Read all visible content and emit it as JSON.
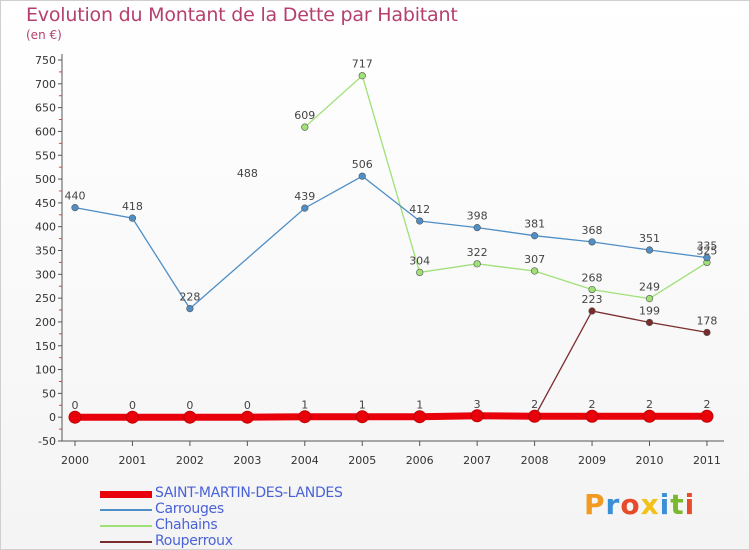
{
  "header": {
    "title": "Evolution du Montant de la Dette par Habitant",
    "unit": "(en €)"
  },
  "logo": {
    "text": "Proxiti",
    "colors": [
      "#f29a21",
      "#3a8fd6",
      "#e84b2c",
      "#f2c21b",
      "#3a8fd6",
      "#7ab92e",
      "#e84b2c"
    ]
  },
  "chart_data": {
    "type": "line",
    "x": [
      "2000",
      "2001",
      "2002",
      "2003",
      "2004",
      "2005",
      "2006",
      "2007",
      "2008",
      "2009",
      "2010",
      "2011"
    ],
    "ylim": [
      -50,
      750
    ],
    "yticks": [
      -50,
      0,
      50,
      100,
      150,
      200,
      250,
      300,
      350,
      400,
      450,
      500,
      550,
      600,
      650,
      700,
      750
    ],
    "grid": false,
    "legend_position": "bottom-left",
    "series": [
      {
        "name": "SAINT-MARTIN-DES-LANDES",
        "color": "#e8000b",
        "values": [
          0,
          0,
          0,
          0,
          1,
          1,
          1,
          3,
          2,
          2,
          2,
          2
        ]
      },
      {
        "name": "Carrouges",
        "color": "#4f8ec6",
        "values": [
          440,
          418,
          228,
          null,
          439,
          506,
          412,
          398,
          381,
          368,
          351,
          335
        ]
      },
      {
        "name": "Chahains",
        "color": "#9fe077",
        "values": [
          null,
          null,
          null,
          null,
          609,
          717,
          304,
          322,
          307,
          268,
          249,
          325
        ]
      },
      {
        "name": "Rouperroux",
        "color": "#7a2c2c",
        "values": [
          0,
          0,
          0,
          0,
          1,
          1,
          1,
          1,
          1,
          223,
          199,
          178
        ]
      }
    ],
    "point_labels": [
      {
        "x": "2000",
        "text": "440",
        "value": 440
      },
      {
        "x": "2001",
        "text": "418",
        "value": 418
      },
      {
        "x": "2002",
        "text": "228",
        "value": 228
      },
      {
        "x": "2003",
        "text": "488",
        "value": 488
      },
      {
        "x": "2004",
        "text": "439",
        "value": 439
      },
      {
        "x": "2005",
        "text": "506",
        "value": 506
      },
      {
        "x": "2006",
        "text": "412",
        "value": 412
      },
      {
        "x": "2007",
        "text": "398",
        "value": 398
      },
      {
        "x": "2008",
        "text": "381",
        "value": 381
      },
      {
        "x": "2009",
        "text": "368",
        "value": 368
      },
      {
        "x": "2010",
        "text": "351",
        "value": 351
      },
      {
        "x": "2011",
        "text": "335",
        "value": 335
      },
      {
        "x": "2004",
        "text": "609",
        "value": 609
      },
      {
        "x": "2005",
        "text": "717",
        "value": 717
      },
      {
        "x": "2006",
        "text": "304",
        "value": 304
      },
      {
        "x": "2007",
        "text": "322",
        "value": 322
      },
      {
        "x": "2008",
        "text": "307",
        "value": 307
      },
      {
        "x": "2009",
        "text": "268",
        "value": 268
      },
      {
        "x": "2010",
        "text": "249",
        "value": 249
      },
      {
        "x": "2011",
        "text": "325",
        "value": 325
      },
      {
        "x": "2009",
        "text": "223",
        "value": 223
      },
      {
        "x": "2010",
        "text": "199",
        "value": 199
      },
      {
        "x": "2011",
        "text": "178",
        "value": 178
      },
      {
        "x": "2000",
        "text": "0",
        "value": 0
      },
      {
        "x": "2001",
        "text": "0",
        "value": 0
      },
      {
        "x": "2002",
        "text": "0",
        "value": 0
      },
      {
        "x": "2003",
        "text": "0",
        "value": 0
      },
      {
        "x": "2004",
        "text": "1",
        "value": 1
      },
      {
        "x": "2005",
        "text": "1",
        "value": 1
      },
      {
        "x": "2006",
        "text": "1",
        "value": 1
      },
      {
        "x": "2007",
        "text": "3",
        "value": 3
      },
      {
        "x": "2008",
        "text": "2",
        "value": 2
      },
      {
        "x": "2009",
        "text": "2",
        "value": 2
      },
      {
        "x": "2010",
        "text": "2",
        "value": 2
      },
      {
        "x": "2011",
        "text": "2",
        "value": 2
      }
    ]
  }
}
